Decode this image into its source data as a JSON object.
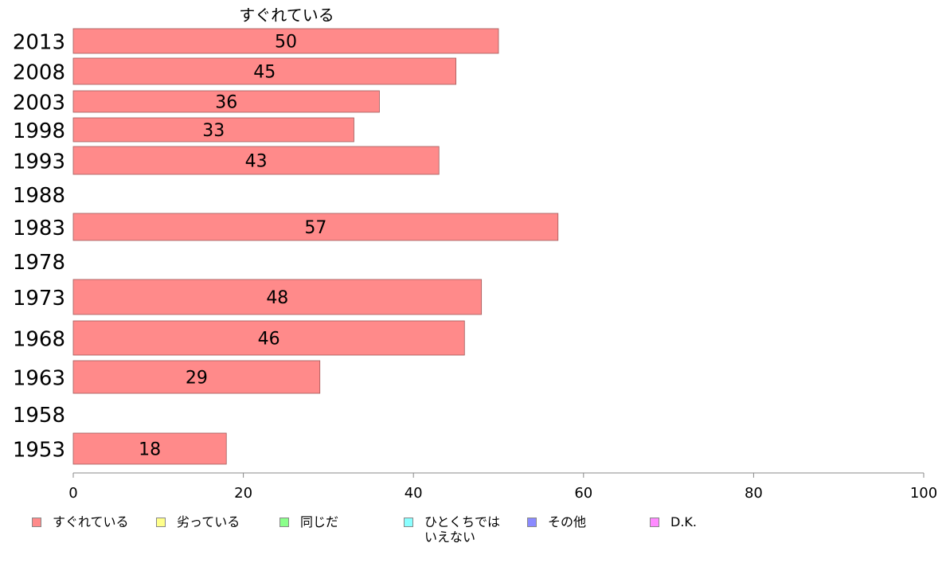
{
  "chart_data": {
    "type": "bar",
    "orientation": "horizontal",
    "title": "すぐれている",
    "categories": [
      "2013",
      "2008",
      "2003",
      "1998",
      "1993",
      "1988",
      "1983",
      "1978",
      "1973",
      "1968",
      "1963",
      "1958",
      "1953"
    ],
    "series": [
      {
        "name": "すぐれている",
        "color": "#ff8a8a",
        "values": [
          50,
          45,
          36,
          33,
          43,
          null,
          57,
          null,
          48,
          46,
          29,
          null,
          18
        ]
      }
    ],
    "data_labels": [
      "50",
      "45",
      "36",
      "33",
      "43",
      "",
      "57",
      "",
      "48",
      "46",
      "29",
      "",
      "18"
    ],
    "xlim": [
      0,
      100
    ],
    "xticks": [
      "0",
      "20",
      "40",
      "60",
      "80",
      "100"
    ],
    "grid": false,
    "legend_position": "bottom",
    "legend": [
      {
        "label": "すぐれている",
        "color": "#ff8a8a"
      },
      {
        "label": "劣っている",
        "color": "#ffff8a"
      },
      {
        "label": "同じだ",
        "color": "#8aff8a"
      },
      {
        "label": "ひとくちでは\nいえない",
        "color": "#8affff"
      },
      {
        "label": "その他",
        "color": "#8a8aff"
      },
      {
        "label": "D.K.",
        "color": "#ff8aff"
      }
    ]
  }
}
